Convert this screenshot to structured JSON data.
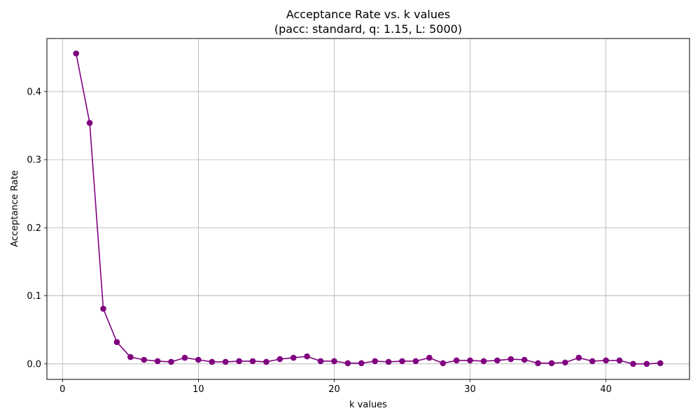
{
  "chart_data": {
    "type": "line",
    "title": "Acceptance Rate vs. k values",
    "subtitle": "(pacc: standard, q: 1.15, L: 5000)",
    "xlabel": "k values",
    "ylabel": "Acceptance Rate",
    "xlim": [
      -1.15,
      46.15
    ],
    "ylim": [
      -0.0228,
      0.478
    ],
    "xticks": [
      0,
      10,
      20,
      30,
      40
    ],
    "yticks": [
      0.0,
      0.1,
      0.2,
      0.3,
      0.4
    ],
    "xtick_labels": [
      "0",
      "10",
      "20",
      "30",
      "40"
    ],
    "ytick_labels": [
      "0.0",
      "0.1",
      "0.2",
      "0.3",
      "0.4"
    ],
    "grid": true,
    "color": "#800080",
    "series": [
      {
        "x": [
          1,
          2,
          3,
          4,
          5,
          6,
          7,
          8,
          9,
          10,
          11,
          12,
          13,
          14,
          15,
          16,
          17,
          18,
          19,
          20,
          21,
          22,
          23,
          24,
          25,
          26,
          27,
          28,
          29,
          30,
          31,
          32,
          33,
          34,
          35,
          36,
          37,
          38,
          39,
          40,
          41,
          42,
          43,
          44
        ],
        "y": [
          0.456,
          0.354,
          0.081,
          0.032,
          0.01,
          0.006,
          0.004,
          0.003,
          0.009,
          0.006,
          0.003,
          0.003,
          0.004,
          0.004,
          0.003,
          0.007,
          0.009,
          0.011,
          0.004,
          0.004,
          0.001,
          0.001,
          0.004,
          0.003,
          0.004,
          0.004,
          0.009,
          0.001,
          0.005,
          0.005,
          0.004,
          0.005,
          0.007,
          0.006,
          0.001,
          0.001,
          0.002,
          0.009,
          0.004,
          0.005,
          0.005,
          0.0,
          0.0,
          0.001
        ]
      }
    ]
  }
}
